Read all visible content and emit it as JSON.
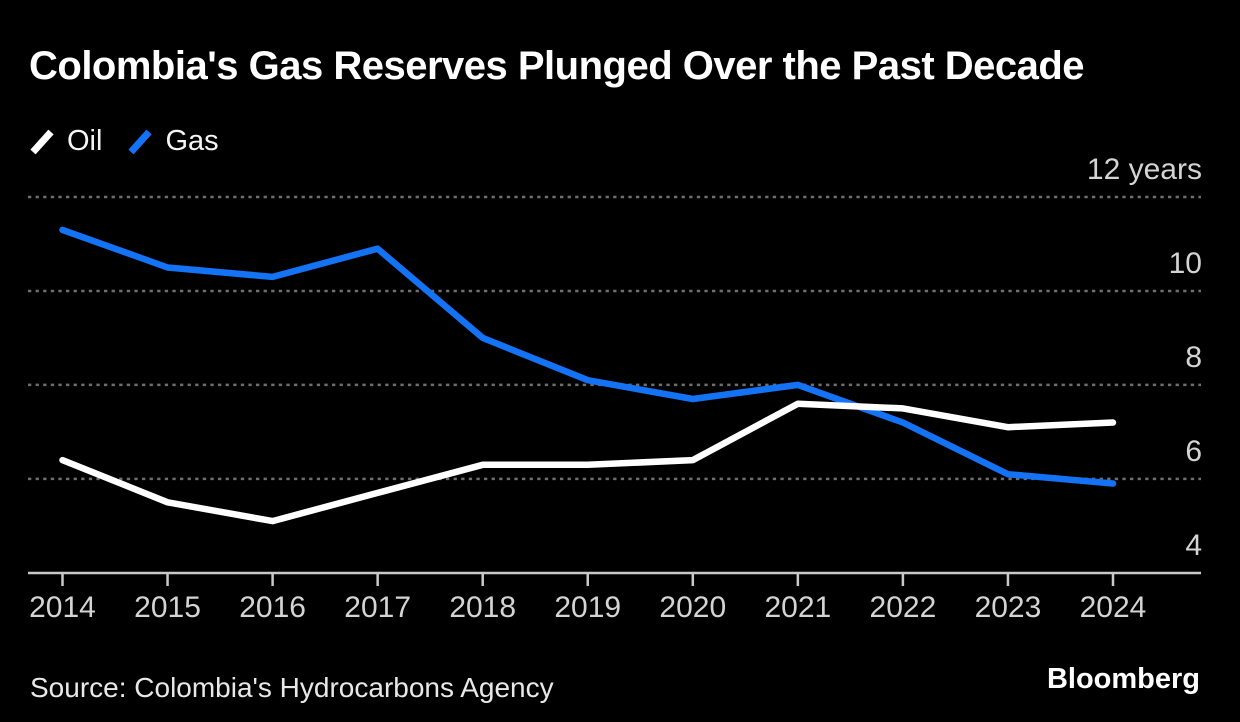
{
  "title": "Colombia's Gas Reserves Plunged Over the Past Decade",
  "legend": {
    "items": [
      {
        "label": "Oil",
        "color": "#ffffff"
      },
      {
        "label": "Gas",
        "color": "#1473f5"
      }
    ]
  },
  "source": "Source: Colombia's Hydrocarbons Agency",
  "brand": "Bloomberg",
  "colors": {
    "background": "#000000",
    "oil_line": "#ffffff",
    "gas_line": "#1473f5",
    "gridline": "#6e6e6e",
    "axis": "#c9c9c9",
    "tick_label": "#d4d4d4"
  },
  "chart_data": {
    "type": "line",
    "title": "Colombia's Gas Reserves Plunged Over the Past Decade",
    "unit": "years",
    "x": [
      2014,
      2015,
      2016,
      2017,
      2018,
      2019,
      2020,
      2021,
      2022,
      2023,
      2024
    ],
    "xlabels": [
      "2014",
      "2015",
      "2016",
      "2017",
      "2018",
      "2019",
      "2020",
      "2021",
      "2022",
      "2023",
      "2024"
    ],
    "series": [
      {
        "name": "Oil",
        "color": "#ffffff",
        "values": [
          6.4,
          5.5,
          5.1,
          5.7,
          6.3,
          6.3,
          6.4,
          7.6,
          7.5,
          7.1,
          7.2
        ]
      },
      {
        "name": "Gas",
        "color": "#1473f5",
        "values": [
          11.3,
          10.5,
          10.3,
          10.9,
          9.0,
          8.1,
          7.7,
          8.0,
          7.2,
          6.1,
          5.9
        ]
      }
    ],
    "yticks": [
      {
        "value": 12,
        "label": "12 years"
      },
      {
        "value": 10,
        "label": "10"
      },
      {
        "value": 8,
        "label": "8"
      },
      {
        "value": 6,
        "label": "6"
      },
      {
        "value": 4,
        "label": "4"
      }
    ],
    "ylim": [
      4,
      12.6
    ],
    "grid": "horizontal-dashed",
    "legend_position": "top-left",
    "source": "Source: Colombia's Hydrocarbons Agency"
  }
}
